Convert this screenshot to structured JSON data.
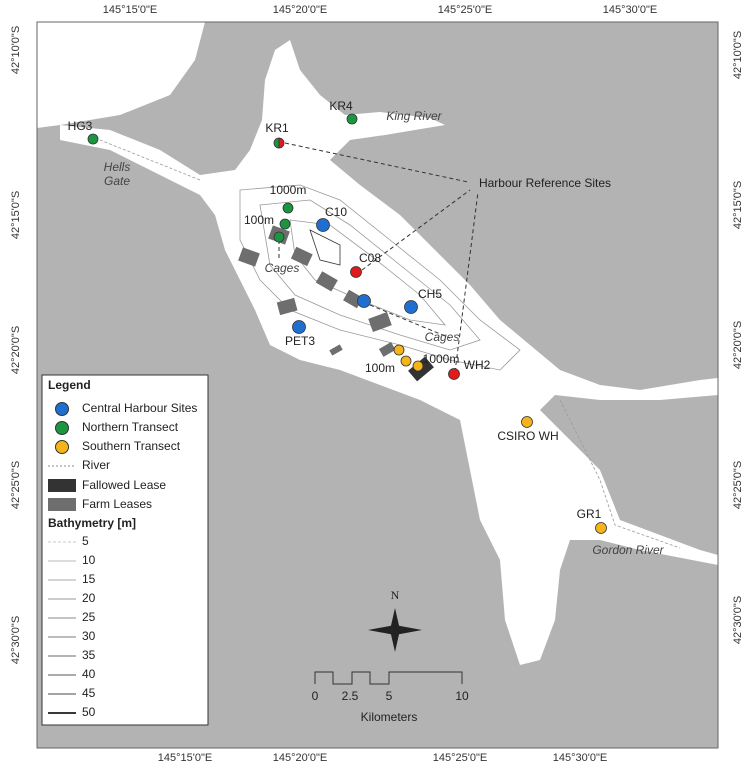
{
  "axes": {
    "top": [
      "145°15'0\"E",
      "145°20'0\"E",
      "145°25'0\"E",
      "145°30'0\"E"
    ],
    "bottom": [
      "145°15'0\"E",
      "145°20'0\"E",
      "145°25'0\"E",
      "145°30'0\"E"
    ],
    "left": [
      "42°10'0\"S",
      "42°15'0\"S",
      "42°20'0\"S",
      "42°25'0\"S",
      "42°30'0\"S"
    ],
    "right": [
      "42°10'0\"S",
      "42°15'0\"S",
      "42°20'0\"S",
      "42°25'0\"S",
      "42°30'0\"S"
    ]
  },
  "sites": [
    "HG3",
    "KR4",
    "KR1",
    "C10",
    "C08",
    "CH5",
    "PET3",
    "WH2",
    "CSIRO WH",
    "GR1"
  ],
  "transect_labels": [
    "1000m",
    "100m",
    "100m",
    "1000m"
  ],
  "cages": [
    "Cages",
    "Cages"
  ],
  "places": {
    "king_river": "King River",
    "hells_gate": [
      "Hells",
      "Gate"
    ],
    "gordon_river": "Gordon River"
  },
  "callout": "Harbour Reference Sites",
  "legend": {
    "title": "Legend",
    "items": [
      "Central Harbour Sites",
      "Northern Transect",
      "Southern Transect",
      "River",
      "Fallowed Lease",
      "Farm Leases"
    ],
    "bathymetry_title": "Bathymetry [m]",
    "depths": [
      "5",
      "10",
      "15",
      "20",
      "25",
      "30",
      "35",
      "40",
      "45",
      "50"
    ]
  },
  "scale": {
    "ticks": [
      "0",
      "2.5",
      "5",
      "10"
    ],
    "unit": "Kilometers"
  },
  "north": "N"
}
